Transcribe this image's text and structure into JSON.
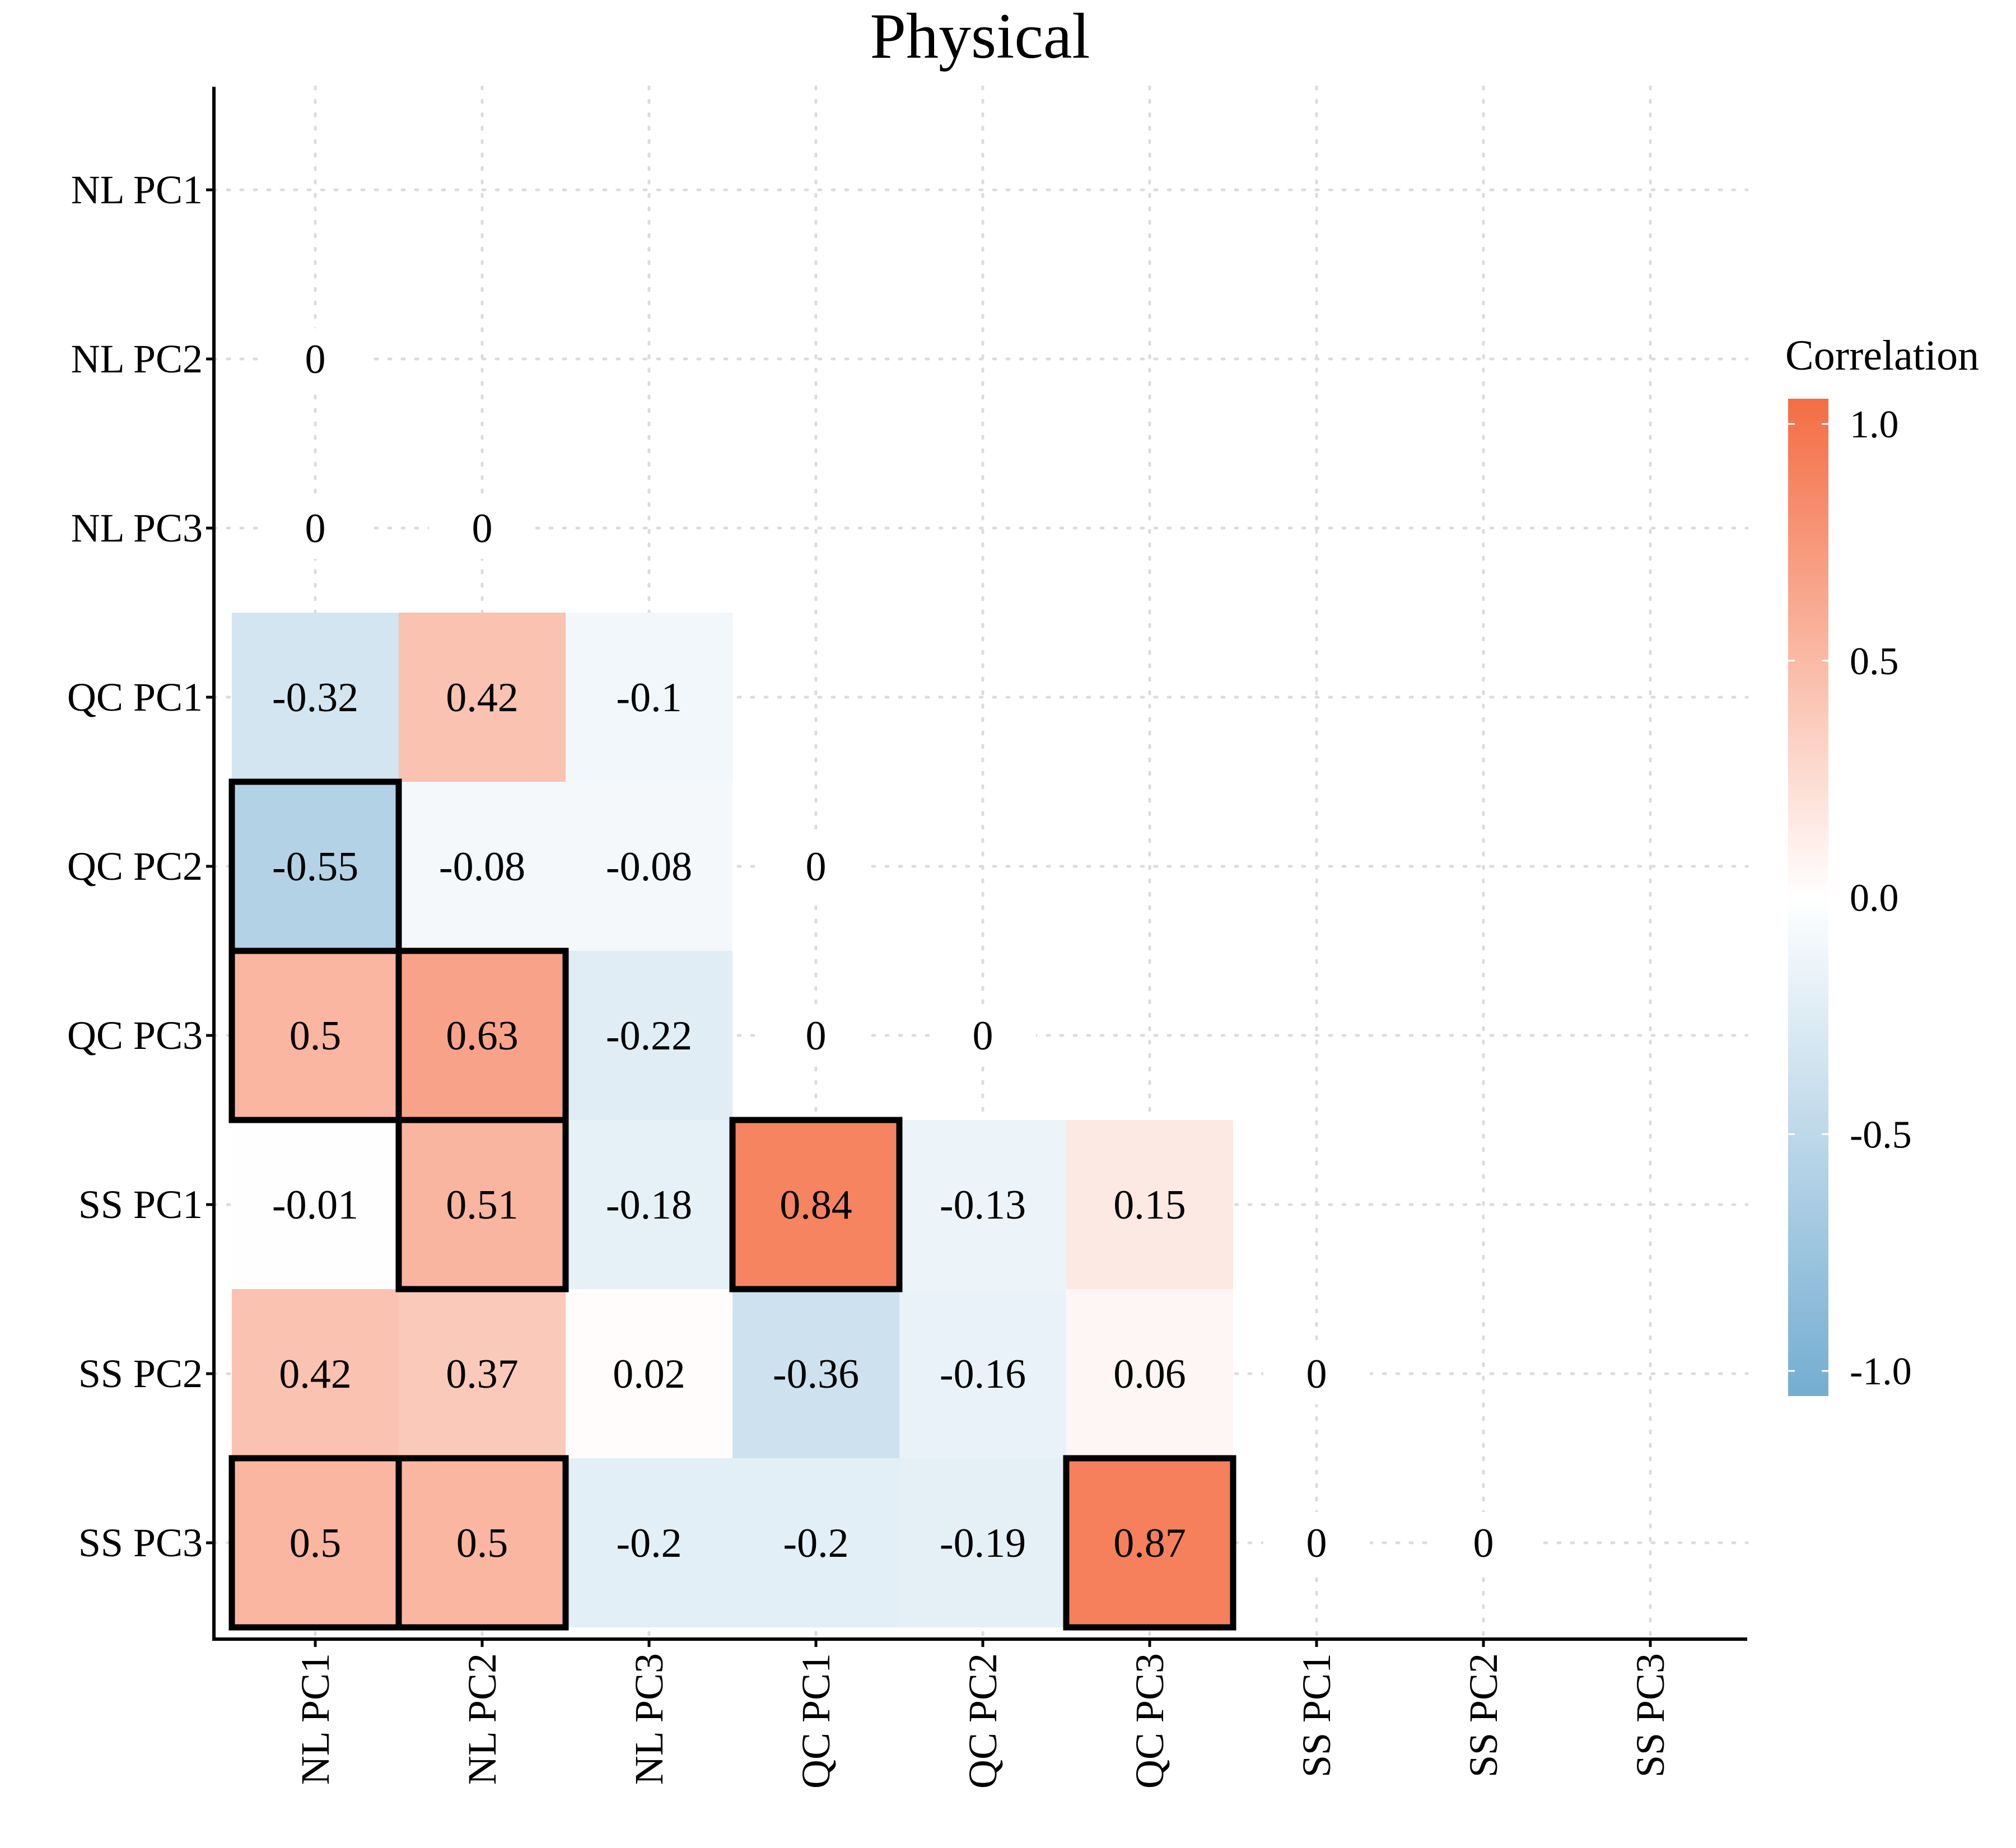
{
  "chart_data": {
    "type": "heatmap",
    "title": "Physical",
    "labels": [
      "NL PC1",
      "NL PC2",
      "NL PC3",
      "QC PC1",
      "QC PC2",
      "QC PC3",
      "SS PC1",
      "SS PC2",
      "SS PC3"
    ],
    "cells": [
      {
        "row": "NL PC2",
        "col": "NL PC1",
        "value": 0,
        "label": "0",
        "colored": false,
        "highlight": false
      },
      {
        "row": "NL PC3",
        "col": "NL PC1",
        "value": 0,
        "label": "0",
        "colored": false,
        "highlight": false
      },
      {
        "row": "NL PC3",
        "col": "NL PC2",
        "value": 0,
        "label": "0",
        "colored": false,
        "highlight": false
      },
      {
        "row": "QC PC1",
        "col": "NL PC1",
        "value": -0.32,
        "label": "-0.32",
        "colored": true,
        "highlight": false
      },
      {
        "row": "QC PC1",
        "col": "NL PC2",
        "value": 0.42,
        "label": "0.42",
        "colored": true,
        "highlight": false
      },
      {
        "row": "QC PC1",
        "col": "NL PC3",
        "value": -0.1,
        "label": "-0.1",
        "colored": true,
        "highlight": false
      },
      {
        "row": "QC PC2",
        "col": "NL PC1",
        "value": -0.55,
        "label": "-0.55",
        "colored": true,
        "highlight": true
      },
      {
        "row": "QC PC2",
        "col": "NL PC2",
        "value": -0.08,
        "label": "-0.08",
        "colored": true,
        "highlight": false
      },
      {
        "row": "QC PC2",
        "col": "NL PC3",
        "value": -0.08,
        "label": "-0.08",
        "colored": true,
        "highlight": false
      },
      {
        "row": "QC PC2",
        "col": "QC PC1",
        "value": 0,
        "label": "0",
        "colored": false,
        "highlight": false
      },
      {
        "row": "QC PC3",
        "col": "NL PC1",
        "value": 0.5,
        "label": "0.5",
        "colored": true,
        "highlight": true
      },
      {
        "row": "QC PC3",
        "col": "NL PC2",
        "value": 0.63,
        "label": "0.63",
        "colored": true,
        "highlight": true
      },
      {
        "row": "QC PC3",
        "col": "NL PC3",
        "value": -0.22,
        "label": "-0.22",
        "colored": true,
        "highlight": false
      },
      {
        "row": "QC PC3",
        "col": "QC PC1",
        "value": 0,
        "label": "0",
        "colored": false,
        "highlight": false
      },
      {
        "row": "QC PC3",
        "col": "QC PC2",
        "value": 0,
        "label": "0",
        "colored": false,
        "highlight": false
      },
      {
        "row": "SS PC1",
        "col": "NL PC1",
        "value": -0.01,
        "label": "-0.01",
        "colored": true,
        "highlight": false
      },
      {
        "row": "SS PC1",
        "col": "NL PC2",
        "value": 0.51,
        "label": "0.51",
        "colored": true,
        "highlight": true
      },
      {
        "row": "SS PC1",
        "col": "NL PC3",
        "value": -0.18,
        "label": "-0.18",
        "colored": true,
        "highlight": false
      },
      {
        "row": "SS PC1",
        "col": "QC PC1",
        "value": 0.84,
        "label": "0.84",
        "colored": true,
        "highlight": true
      },
      {
        "row": "SS PC1",
        "col": "QC PC2",
        "value": -0.13,
        "label": "-0.13",
        "colored": true,
        "highlight": false
      },
      {
        "row": "SS PC1",
        "col": "QC PC3",
        "value": 0.15,
        "label": "0.15",
        "colored": true,
        "highlight": false
      },
      {
        "row": "SS PC2",
        "col": "NL PC1",
        "value": 0.42,
        "label": "0.42",
        "colored": true,
        "highlight": false
      },
      {
        "row": "SS PC2",
        "col": "NL PC2",
        "value": 0.37,
        "label": "0.37",
        "colored": true,
        "highlight": false
      },
      {
        "row": "SS PC2",
        "col": "NL PC3",
        "value": 0.02,
        "label": "0.02",
        "colored": true,
        "highlight": false
      },
      {
        "row": "SS PC2",
        "col": "QC PC1",
        "value": -0.36,
        "label": "-0.36",
        "colored": true,
        "highlight": false
      },
      {
        "row": "SS PC2",
        "col": "QC PC2",
        "value": -0.16,
        "label": "-0.16",
        "colored": true,
        "highlight": false
      },
      {
        "row": "SS PC2",
        "col": "QC PC3",
        "value": 0.06,
        "label": "0.06",
        "colored": true,
        "highlight": false
      },
      {
        "row": "SS PC2",
        "col": "SS PC1",
        "value": 0,
        "label": "0",
        "colored": false,
        "highlight": false
      },
      {
        "row": "SS PC3",
        "col": "NL PC1",
        "value": 0.5,
        "label": "0.5",
        "colored": true,
        "highlight": true
      },
      {
        "row": "SS PC3",
        "col": "NL PC2",
        "value": 0.5,
        "label": "0.5",
        "colored": true,
        "highlight": true
      },
      {
        "row": "SS PC3",
        "col": "NL PC3",
        "value": -0.2,
        "label": "-0.2",
        "colored": true,
        "highlight": false
      },
      {
        "row": "SS PC3",
        "col": "QC PC1",
        "value": -0.2,
        "label": "-0.2",
        "colored": true,
        "highlight": false
      },
      {
        "row": "SS PC3",
        "col": "QC PC2",
        "value": -0.19,
        "label": "-0.19",
        "colored": true,
        "highlight": false
      },
      {
        "row": "SS PC3",
        "col": "QC PC3",
        "value": 0.87,
        "label": "0.87",
        "colored": true,
        "highlight": true
      },
      {
        "row": "SS PC3",
        "col": "SS PC1",
        "value": 0,
        "label": "0",
        "colored": false,
        "highlight": false
      },
      {
        "row": "SS PC3",
        "col": "SS PC2",
        "value": 0,
        "label": "0",
        "colored": false,
        "highlight": false
      }
    ],
    "legend": {
      "title": "Correlation",
      "range": [
        -1.0,
        1.0
      ],
      "ticks": [
        {
          "value": 1.0,
          "label": "1.0"
        },
        {
          "value": 0.5,
          "label": "0.5"
        },
        {
          "value": 0.0,
          "label": "0.0"
        },
        {
          "value": -0.5,
          "label": "-0.5"
        },
        {
          "value": -1.0,
          "label": "-1.0"
        }
      ],
      "colors": {
        "high": "#f46d43",
        "mid": "#ffffff",
        "low": "#74add1"
      },
      "placement": "right"
    },
    "grid": true,
    "highlight_border_color": "#000000"
  }
}
